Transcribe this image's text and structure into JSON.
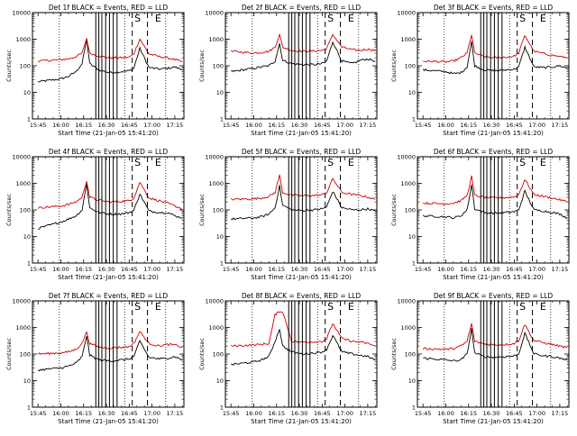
{
  "figure": {
    "start_time_label": "Start Time (21-Jan-05 15:41:20)",
    "ylabel": "Counts/sec",
    "colors": {
      "events": "#000000",
      "lld": "#d40000",
      "axes": "#000000",
      "background": "#ffffff"
    }
  },
  "chart_data": [
    {
      "type": "line",
      "title": "Det 1f BLACK = Events, RED = LLD",
      "xlabel": "Start Time (21-Jan-05 15:41:20)",
      "ylabel": "Counts/sec",
      "x_ticks": [
        "15:45",
        "16:00",
        "16:15",
        "16:30",
        "16:45",
        "17:00",
        "17:15"
      ],
      "y_ticks": [
        "1",
        "10",
        "100",
        "1000",
        "10000"
      ],
      "y_scale": "log",
      "ylim": [
        1,
        10000
      ],
      "x": [
        "15:45",
        "16:00",
        "16:05",
        "16:10",
        "16:14",
        "16:17",
        "16:19",
        "16:25",
        "16:32",
        "16:40",
        "16:45",
        "16:48",
        "16:52",
        "16:58",
        "17:05",
        "17:10",
        "17:15",
        "17:20"
      ],
      "series": [
        {
          "name": "BLACK = Events",
          "values": [
            25,
            32,
            40,
            60,
            120,
            1000,
            120,
            70,
            55,
            60,
            65,
            80,
            450,
            85,
            75,
            80,
            90,
            70
          ]
        },
        {
          "name": "RED = LLD",
          "values": [
            150,
            170,
            180,
            220,
            300,
            1100,
            300,
            230,
            200,
            200,
            210,
            280,
            1000,
            280,
            220,
            200,
            170,
            140
          ]
        }
      ],
      "annotations": [
        "S",
        "E"
      ]
    },
    {
      "type": "line",
      "title": "Det 2f BLACK = Events, RED = LLD",
      "xlabel": "Start Time (21-Jan-05 15:41:20)",
      "ylabel": "Counts/sec",
      "x_ticks": [
        "15:45",
        "16:00",
        "16:15",
        "16:30",
        "16:45",
        "17:00",
        "17:15"
      ],
      "y_ticks": [
        "1",
        "10",
        "100",
        "1000",
        "10000"
      ],
      "y_scale": "log",
      "ylim": [
        1,
        10000
      ],
      "x": [
        "15:45",
        "16:00",
        "16:05",
        "16:10",
        "16:14",
        "16:17",
        "16:19",
        "16:25",
        "16:32",
        "16:40",
        "16:45",
        "16:48",
        "16:52",
        "16:58",
        "17:05",
        "17:10",
        "17:15",
        "17:20"
      ],
      "series": [
        {
          "name": "BLACK = Events",
          "values": [
            60,
            80,
            90,
            100,
            150,
            700,
            160,
            120,
            110,
            110,
            120,
            150,
            800,
            150,
            120,
            160,
            180,
            150
          ]
        },
        {
          "name": "RED = LLD",
          "values": [
            350,
            300,
            320,
            350,
            500,
            1500,
            500,
            380,
            350,
            360,
            380,
            450,
            1500,
            500,
            400,
            380,
            420,
            380
          ]
        }
      ],
      "annotations": [
        "S",
        "E"
      ]
    },
    {
      "type": "line",
      "title": "Det 3f BLACK = Events, RED = LLD",
      "xlabel": "Start Time (21-Jan-05 15:41:20)",
      "ylabel": "Counts/sec",
      "x_ticks": [
        "15:45",
        "16:00",
        "16:15",
        "16:30",
        "16:45",
        "17:00",
        "17:15"
      ],
      "y_ticks": [
        "1",
        "10",
        "100",
        "1000",
        "10000"
      ],
      "y_scale": "log",
      "ylim": [
        1,
        10000
      ],
      "x": [
        "15:45",
        "16:00",
        "16:05",
        "16:10",
        "16:14",
        "16:17",
        "16:19",
        "16:25",
        "16:32",
        "16:40",
        "16:45",
        "16:48",
        "16:52",
        "16:58",
        "17:05",
        "17:10",
        "17:15",
        "17:20"
      ],
      "series": [
        {
          "name": "BLACK = Events",
          "values": [
            70,
            60,
            50,
            55,
            90,
            800,
            100,
            70,
            65,
            70,
            75,
            90,
            500,
            90,
            85,
            90,
            100,
            80
          ]
        },
        {
          "name": "RED = LLD",
          "values": [
            150,
            140,
            150,
            200,
            300,
            1500,
            300,
            220,
            200,
            210,
            230,
            300,
            1400,
            350,
            280,
            250,
            220,
            200
          ]
        }
      ],
      "annotations": [
        "S",
        "E"
      ]
    },
    {
      "type": "line",
      "title": "Det 4f BLACK = Events, RED = LLD",
      "xlabel": "Start Time (21-Jan-05 15:41:20)",
      "ylabel": "Counts/sec",
      "x_ticks": [
        "15:45",
        "16:00",
        "16:15",
        "16:30",
        "16:45",
        "17:00",
        "17:15"
      ],
      "y_ticks": [
        "1",
        "10",
        "100",
        "1000",
        "10000"
      ],
      "y_scale": "log",
      "ylim": [
        1,
        10000
      ],
      "x": [
        "15:45",
        "16:00",
        "16:05",
        "16:10",
        "16:14",
        "16:17",
        "16:19",
        "16:25",
        "16:32",
        "16:40",
        "16:45",
        "16:48",
        "16:52",
        "16:58",
        "17:05",
        "17:10",
        "17:15",
        "17:20"
      ],
      "series": [
        {
          "name": "BLACK = Events",
          "values": [
            20,
            35,
            45,
            60,
            100,
            1000,
            120,
            80,
            70,
            70,
            80,
            95,
            400,
            90,
            80,
            80,
            60,
            50
          ]
        },
        {
          "name": "RED = LLD",
          "values": [
            120,
            140,
            160,
            200,
            300,
            1300,
            300,
            230,
            200,
            210,
            220,
            280,
            1100,
            280,
            220,
            180,
            140,
            110
          ]
        }
      ],
      "annotations": [
        "S",
        "E"
      ]
    },
    {
      "type": "line",
      "title": "Det 5f BLACK = Events, RED = LLD",
      "xlabel": "Start Time (21-Jan-05 15:41:20)",
      "ylabel": "Counts/sec",
      "x_ticks": [
        "15:45",
        "16:00",
        "16:15",
        "16:30",
        "16:45",
        "17:00",
        "17:15"
      ],
      "y_ticks": [
        "1",
        "10",
        "100",
        "1000",
        "10000"
      ],
      "y_scale": "log",
      "ylim": [
        1,
        10000
      ],
      "x": [
        "15:45",
        "16:00",
        "16:05",
        "16:10",
        "16:14",
        "16:17",
        "16:19",
        "16:25",
        "16:32",
        "16:40",
        "16:45",
        "16:48",
        "16:52",
        "16:58",
        "17:05",
        "17:10",
        "17:15",
        "17:20"
      ],
      "series": [
        {
          "name": "BLACK = Events",
          "values": [
            45,
            50,
            55,
            70,
            120,
            800,
            150,
            100,
            95,
            100,
            110,
            130,
            500,
            120,
            100,
            100,
            110,
            90
          ]
        },
        {
          "name": "RED = LLD",
          "values": [
            250,
            260,
            280,
            320,
            450,
            2000,
            450,
            360,
            340,
            350,
            370,
            450,
            1500,
            450,
            380,
            350,
            300,
            250
          ]
        }
      ],
      "annotations": [
        "S",
        "E"
      ]
    },
    {
      "type": "line",
      "title": "Det 6f BLACK = Events, RED = LLD",
      "xlabel": "Start Time (21-Jan-05 15:41:20)",
      "ylabel": "Counts/sec",
      "x_ticks": [
        "15:45",
        "16:00",
        "16:15",
        "16:30",
        "16:45",
        "17:00",
        "17:15"
      ],
      "y_ticks": [
        "1",
        "10",
        "100",
        "1000",
        "10000"
      ],
      "y_scale": "log",
      "ylim": [
        1,
        10000
      ],
      "x": [
        "15:45",
        "16:00",
        "16:05",
        "16:10",
        "16:14",
        "16:17",
        "16:19",
        "16:25",
        "16:32",
        "16:40",
        "16:45",
        "16:48",
        "16:52",
        "16:58",
        "17:05",
        "17:10",
        "17:15",
        "17:20"
      ],
      "series": [
        {
          "name": "BLACK = Events",
          "values": [
            60,
            55,
            50,
            60,
            100,
            900,
            110,
            80,
            75,
            80,
            85,
            100,
            500,
            100,
            90,
            80,
            70,
            50
          ]
        },
        {
          "name": "RED = LLD",
          "values": [
            180,
            170,
            180,
            220,
            350,
            1800,
            350,
            300,
            280,
            290,
            310,
            380,
            1400,
            380,
            320,
            280,
            240,
            200
          ]
        }
      ],
      "annotations": [
        "S",
        "E"
      ]
    },
    {
      "type": "line",
      "title": "Det 7f BLACK = Events, RED = LLD",
      "xlabel": "Start Time (21-Jan-05 15:41:20)",
      "ylabel": "Counts/sec",
      "x_ticks": [
        "15:45",
        "16:00",
        "16:15",
        "16:30",
        "16:45",
        "17:00",
        "17:15"
      ],
      "y_ticks": [
        "1",
        "10",
        "100",
        "1000",
        "10000"
      ],
      "y_scale": "log",
      "ylim": [
        1,
        10000
      ],
      "x": [
        "15:45",
        "16:00",
        "16:05",
        "16:10",
        "16:14",
        "16:17",
        "16:19",
        "16:25",
        "16:32",
        "16:40",
        "16:45",
        "16:48",
        "16:52",
        "16:58",
        "17:05",
        "17:10",
        "17:15",
        "17:20"
      ],
      "series": [
        {
          "name": "BLACK = Events",
          "values": [
            25,
            30,
            35,
            45,
            80,
            500,
            90,
            60,
            55,
            60,
            65,
            80,
            300,
            75,
            65,
            70,
            80,
            60
          ]
        },
        {
          "name": "RED = LLD",
          "values": [
            100,
            110,
            120,
            150,
            250,
            700,
            250,
            180,
            170,
            180,
            190,
            250,
            700,
            250,
            200,
            230,
            220,
            180
          ]
        }
      ],
      "annotations": [
        "S",
        "E"
      ]
    },
    {
      "type": "line",
      "title": "Det 8f BLACK = Events, RED = LLD",
      "xlabel": "Start Time (21-Jan-05 15:41:20)",
      "ylabel": "Counts/sec",
      "x_ticks": [
        "15:45",
        "16:00",
        "16:15",
        "16:30",
        "16:45",
        "17:00",
        "17:15"
      ],
      "y_ticks": [
        "1",
        "10",
        "100",
        "1000",
        "10000"
      ],
      "y_scale": "log",
      "ylim": [
        1,
        10000
      ],
      "x": [
        "15:45",
        "16:00",
        "16:05",
        "16:10",
        "16:14",
        "16:17",
        "16:19",
        "16:25",
        "16:32",
        "16:40",
        "16:45",
        "16:48",
        "16:52",
        "16:58",
        "17:05",
        "17:10",
        "17:15",
        "17:20"
      ],
      "series": [
        {
          "name": "BLACK = Events",
          "values": [
            40,
            50,
            60,
            80,
            300,
            900,
            200,
            120,
            100,
            110,
            120,
            150,
            500,
            120,
            100,
            90,
            80,
            60
          ]
        },
        {
          "name": "RED = LLD",
          "values": [
            200,
            220,
            230,
            250,
            3000,
            4000,
            4000,
            300,
            280,
            290,
            300,
            380,
            1400,
            380,
            300,
            280,
            250,
            200
          ]
        }
      ],
      "annotations": [
        "S",
        "E"
      ]
    },
    {
      "type": "line",
      "title": "Det 9f BLACK = Events, RED = LLD",
      "xlabel": "Start Time (21-Jan-05 15:41:20)",
      "ylabel": "Counts/sec",
      "x_ticks": [
        "15:45",
        "16:00",
        "16:15",
        "16:30",
        "16:45",
        "17:00",
        "17:15"
      ],
      "y_ticks": [
        "1",
        "10",
        "100",
        "1000",
        "10000"
      ],
      "y_scale": "log",
      "ylim": [
        1,
        10000
      ],
      "x": [
        "15:45",
        "16:00",
        "16:05",
        "16:10",
        "16:14",
        "16:17",
        "16:19",
        "16:25",
        "16:32",
        "16:40",
        "16:45",
        "16:48",
        "16:52",
        "16:58",
        "17:05",
        "17:10",
        "17:15",
        "17:20"
      ],
      "series": [
        {
          "name": "BLACK = Events",
          "values": [
            70,
            60,
            55,
            60,
            100,
            900,
            110,
            80,
            75,
            80,
            85,
            100,
            600,
            100,
            85,
            80,
            70,
            60
          ]
        },
        {
          "name": "RED = LLD",
          "values": [
            160,
            150,
            160,
            200,
            300,
            1400,
            300,
            240,
            220,
            230,
            250,
            320,
            1300,
            320,
            260,
            230,
            200,
            170
          ]
        }
      ],
      "annotations": [
        "S",
        "E"
      ]
    }
  ]
}
